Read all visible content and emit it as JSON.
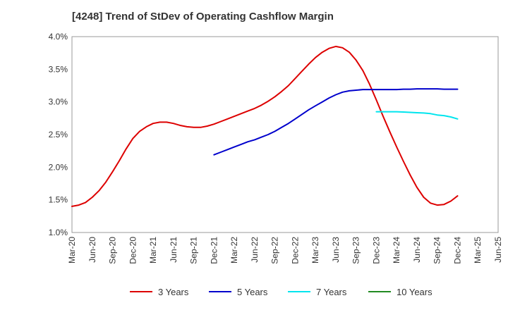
{
  "chart_data": {
    "type": "line",
    "title": "[4248]  Trend of StDev of Operating Cashflow Margin",
    "xlabel": "",
    "ylabel": "",
    "x_ticks": [
      "Mar-20",
      "Jun-20",
      "Sep-20",
      "Dec-20",
      "Mar-21",
      "Jun-21",
      "Sep-21",
      "Dec-21",
      "Mar-22",
      "Jun-22",
      "Sep-22",
      "Dec-22",
      "Mar-23",
      "Jun-23",
      "Sep-23",
      "Dec-23",
      "Mar-24",
      "Jun-24",
      "Sep-24",
      "Dec-24",
      "Mar-25",
      "Jun-25"
    ],
    "y_ticks": [
      "1.0%",
      "1.5%",
      "2.0%",
      "2.5%",
      "3.0%",
      "3.5%",
      "4.0%"
    ],
    "ylim": [
      1.0,
      4.0
    ],
    "grid": true,
    "legend_position": "bottom",
    "series": [
      {
        "name": "3 Years",
        "color": "#dd0000",
        "x": [
          "Mar-20",
          "Apr-20",
          "May-20",
          "Jun-20",
          "Jul-20",
          "Aug-20",
          "Sep-20",
          "Oct-20",
          "Nov-20",
          "Dec-20",
          "Jan-21",
          "Feb-21",
          "Mar-21",
          "Apr-21",
          "May-21",
          "Jun-21",
          "Jul-21",
          "Aug-21",
          "Sep-21",
          "Oct-21",
          "Nov-21",
          "Dec-21",
          "Jan-22",
          "Feb-22",
          "Mar-22",
          "Apr-22",
          "May-22",
          "Jun-22",
          "Jul-22",
          "Aug-22",
          "Sep-22",
          "Oct-22",
          "Nov-22",
          "Dec-22",
          "Jan-23",
          "Feb-23",
          "Mar-23",
          "Apr-23",
          "May-23",
          "Jun-23",
          "Jul-23",
          "Aug-23",
          "Sep-23",
          "Oct-23",
          "Nov-23",
          "Dec-23",
          "Jan-24",
          "Feb-24",
          "Mar-24",
          "Apr-24",
          "May-24",
          "Jun-24",
          "Jul-24",
          "Aug-24",
          "Sep-24",
          "Oct-24",
          "Nov-24",
          "Dec-24"
        ],
        "values": [
          1.4,
          1.42,
          1.46,
          1.54,
          1.64,
          1.77,
          1.93,
          2.1,
          2.28,
          2.44,
          2.55,
          2.62,
          2.67,
          2.69,
          2.69,
          2.67,
          2.64,
          2.62,
          2.61,
          2.61,
          2.63,
          2.66,
          2.7,
          2.74,
          2.78,
          2.82,
          2.86,
          2.9,
          2.95,
          3.01,
          3.08,
          3.16,
          3.25,
          3.36,
          3.47,
          3.58,
          3.68,
          3.76,
          3.82,
          3.85,
          3.83,
          3.76,
          3.64,
          3.48,
          3.27,
          3.03,
          2.78,
          2.54,
          2.31,
          2.09,
          1.88,
          1.69,
          1.54,
          1.45,
          1.42,
          1.43,
          1.48,
          1.56
        ]
      },
      {
        "name": "5 Years",
        "color": "#0000cc",
        "x": [
          "Dec-21",
          "Jan-22",
          "Feb-22",
          "Mar-22",
          "Apr-22",
          "May-22",
          "Jun-22",
          "Jul-22",
          "Aug-22",
          "Sep-22",
          "Oct-22",
          "Nov-22",
          "Dec-22",
          "Jan-23",
          "Feb-23",
          "Mar-23",
          "Apr-23",
          "May-23",
          "Jun-23",
          "Jul-23",
          "Aug-23",
          "Sep-23",
          "Oct-23",
          "Nov-23",
          "Dec-23",
          "Jan-24",
          "Feb-24",
          "Mar-24",
          "Apr-24",
          "May-24",
          "Jun-24",
          "Jul-24",
          "Aug-24",
          "Sep-24",
          "Oct-24",
          "Nov-24",
          "Dec-24"
        ],
        "values": [
          2.19,
          2.23,
          2.27,
          2.31,
          2.35,
          2.39,
          2.42,
          2.46,
          2.5,
          2.55,
          2.61,
          2.67,
          2.74,
          2.81,
          2.88,
          2.94,
          3.0,
          3.06,
          3.11,
          3.15,
          3.17,
          3.18,
          3.19,
          3.19,
          3.19,
          3.19,
          3.19,
          3.19,
          3.195,
          3.195,
          3.2,
          3.2,
          3.2,
          3.2,
          3.195,
          3.195,
          3.195
        ]
      },
      {
        "name": "7 Years",
        "color": "#00e5ee",
        "x": [
          "Dec-23",
          "Jan-24",
          "Feb-24",
          "Mar-24",
          "Apr-24",
          "May-24",
          "Jun-24",
          "Jul-24",
          "Aug-24",
          "Sep-24",
          "Oct-24",
          "Nov-24",
          "Dec-24"
        ],
        "values": [
          2.85,
          2.85,
          2.85,
          2.85,
          2.845,
          2.84,
          2.835,
          2.83,
          2.82,
          2.8,
          2.79,
          2.77,
          2.74
        ]
      },
      {
        "name": "10 Years",
        "color": "#228b22",
        "x": [],
        "values": []
      }
    ]
  }
}
